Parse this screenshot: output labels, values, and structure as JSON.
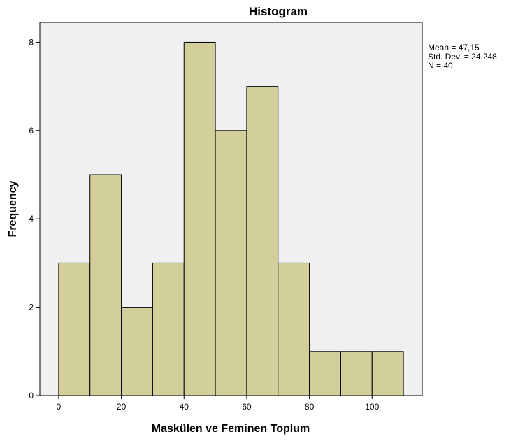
{
  "chart_data": {
    "type": "bar",
    "title": "Histogram",
    "xlabel": "Maskülen ve Feminen Toplum",
    "ylabel": "Frequency",
    "bins": [
      {
        "from": 0,
        "to": 10,
        "value": 3
      },
      {
        "from": 10,
        "to": 20,
        "value": 5
      },
      {
        "from": 20,
        "to": 30,
        "value": 2
      },
      {
        "from": 30,
        "to": 40,
        "value": 3
      },
      {
        "from": 40,
        "to": 50,
        "value": 8
      },
      {
        "from": 50,
        "to": 60,
        "value": 6
      },
      {
        "from": 60,
        "to": 70,
        "value": 7
      },
      {
        "from": 70,
        "to": 80,
        "value": 3
      },
      {
        "from": 80,
        "to": 90,
        "value": 1
      },
      {
        "from": 90,
        "to": 100,
        "value": 1
      },
      {
        "from": 100,
        "to": 110,
        "value": 1
      }
    ],
    "xlim": [
      -6,
      116
    ],
    "ylim": [
      0,
      8.45
    ],
    "xticks": [
      0,
      20,
      40,
      60,
      80,
      100
    ],
    "yticks": [
      0,
      2,
      4,
      6,
      8
    ],
    "grid": false,
    "colors": {
      "bar_fill": "#d3cf9b",
      "bar_stroke": "#000000",
      "plot_bg": "#f0f0f0"
    },
    "stats": {
      "mean": "Mean = 47,15",
      "std_dev": "Std. Dev. = 24,248",
      "n": "N = 40"
    }
  }
}
